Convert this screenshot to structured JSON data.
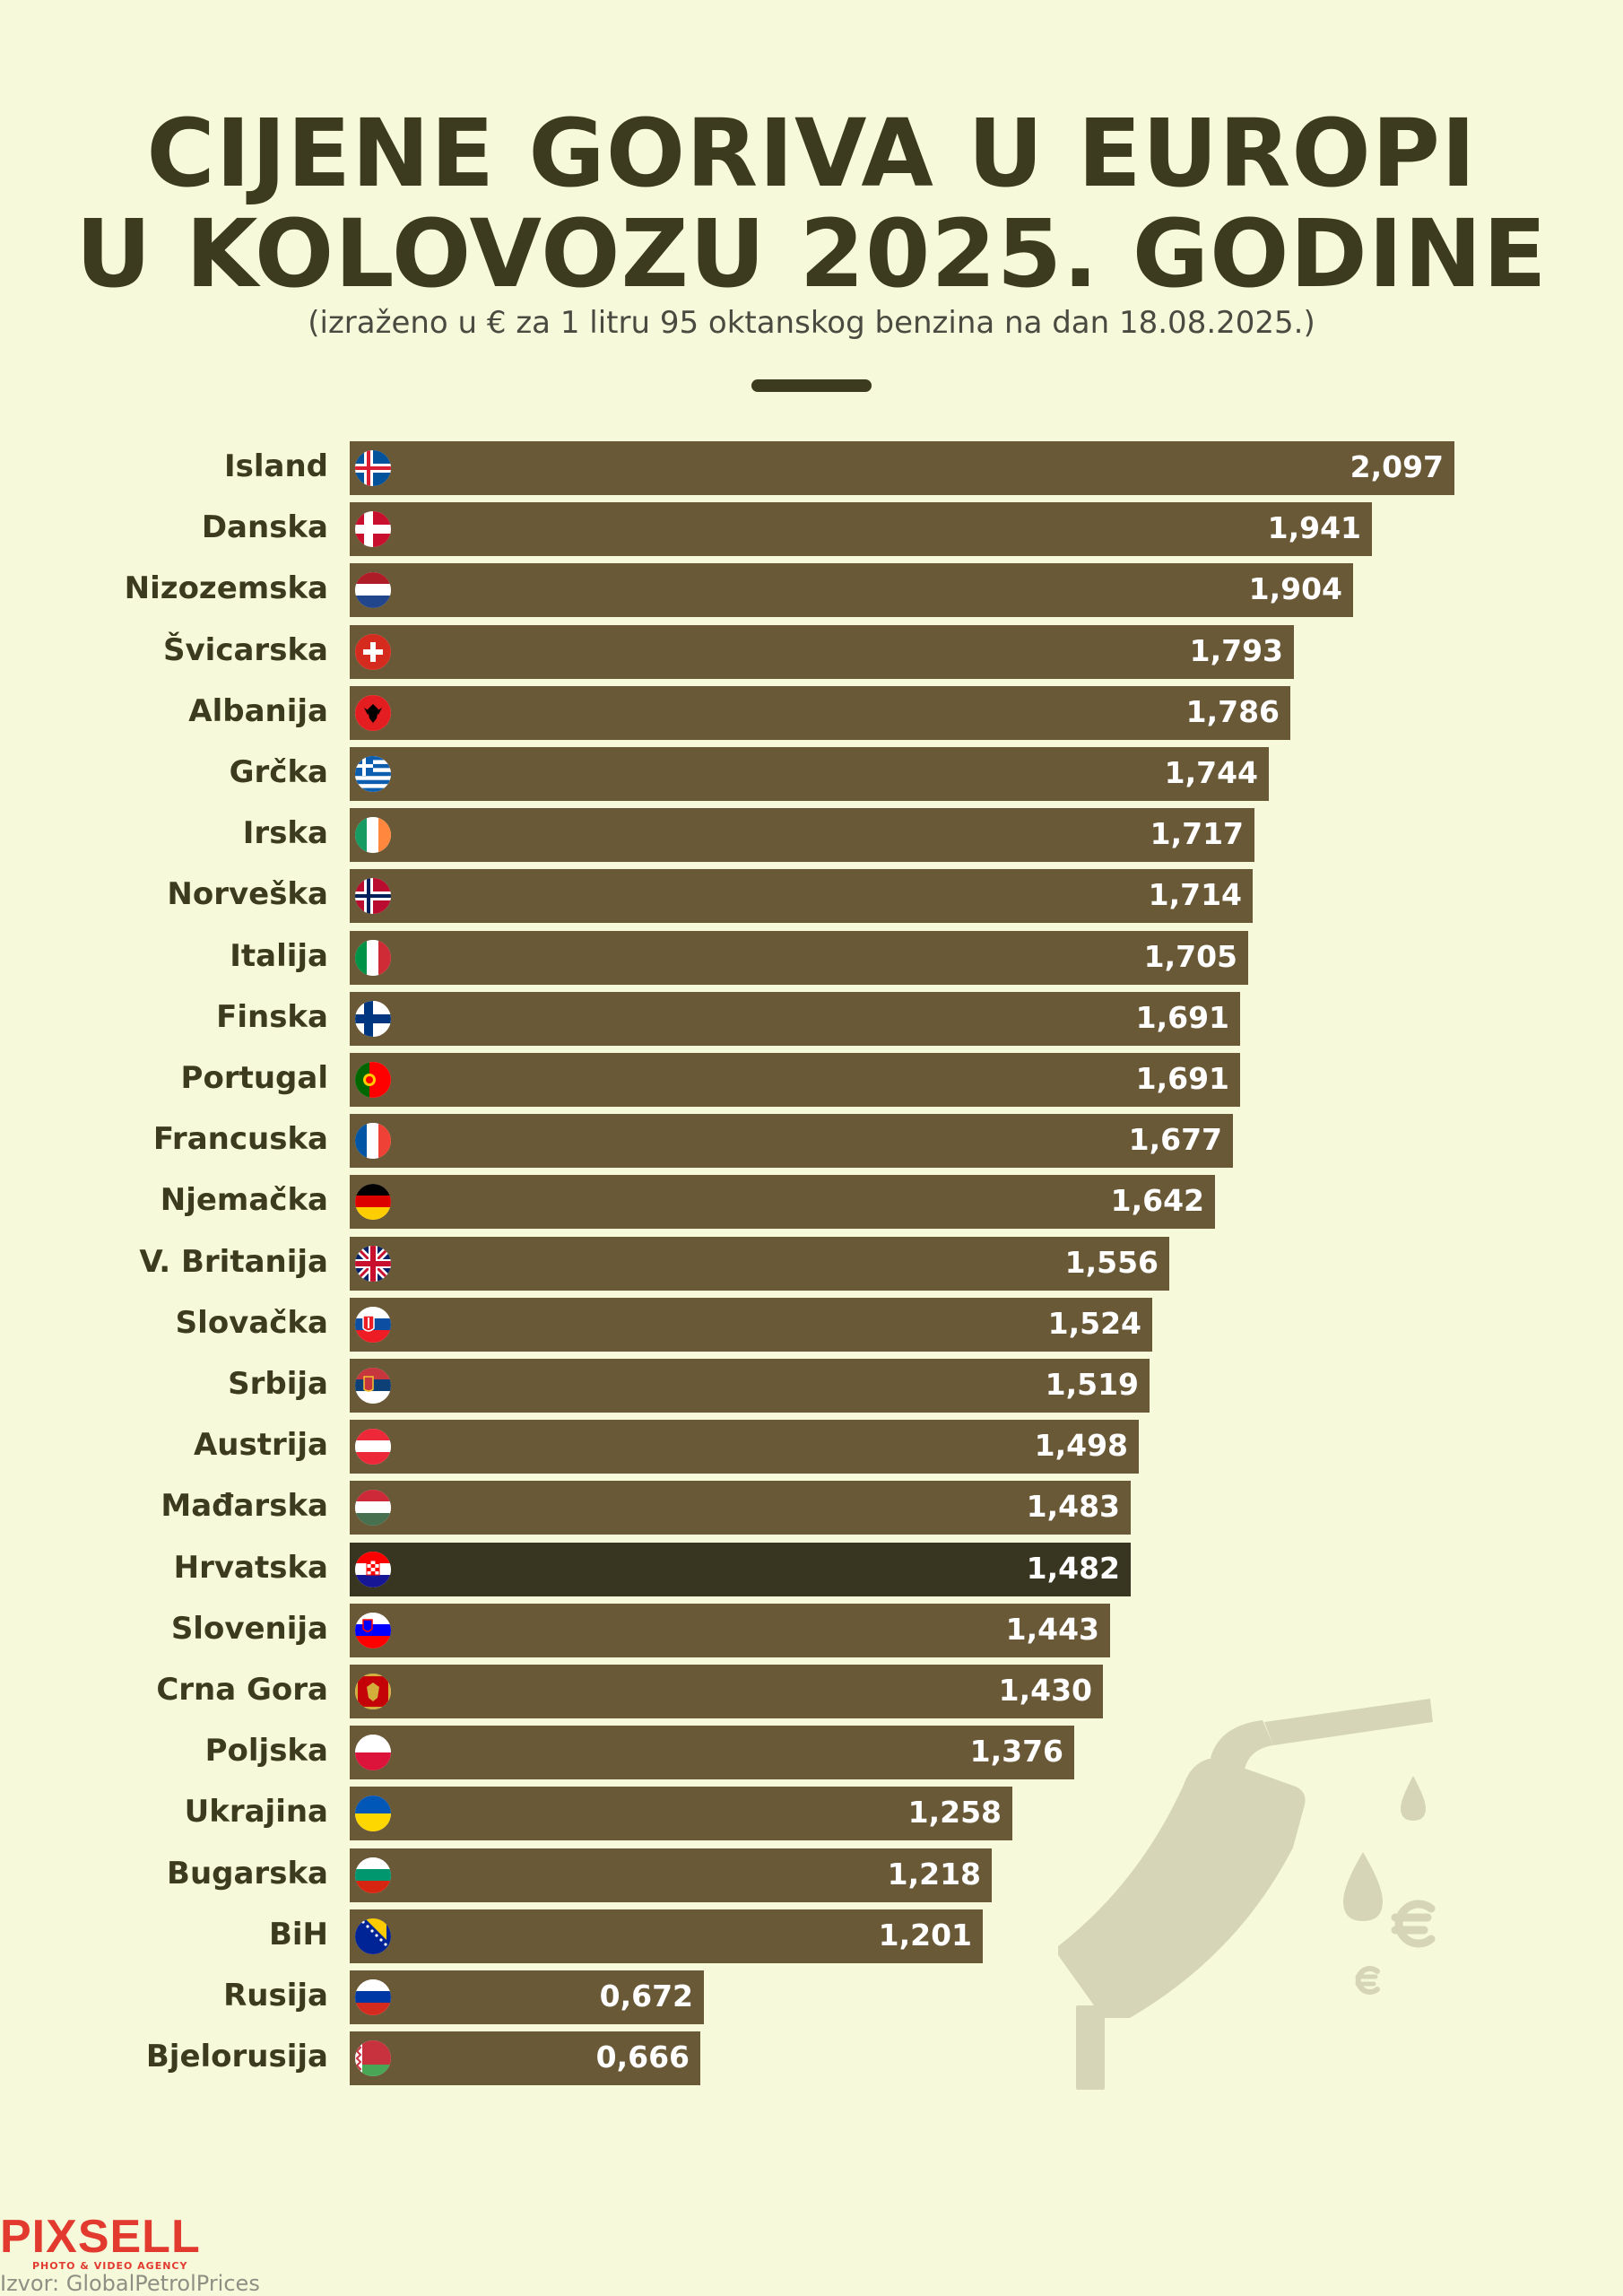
{
  "header": {
    "title_line1": "CIJENE GORIVA U EUROPI",
    "title_line2": "U KOLOVOZU 2025. GODINE",
    "subtitle": "(izraženo u € za 1 litru 95 oktanskog benzina na dan 18.08.2025.)"
  },
  "chart_data": {
    "type": "bar",
    "orientation": "horizontal",
    "categories": [
      "Island",
      "Danska",
      "Nizozemska",
      "Švicarska",
      "Albanija",
      "Grčka",
      "Irska",
      "Norveška",
      "Italija",
      "Finska",
      "Portugal",
      "Francuska",
      "Njemačka",
      "V. Britanija",
      "Slovačka",
      "Srbija",
      "Austrija",
      "Mađarska",
      "Hrvatska",
      "Slovenija",
      "Crna Gora",
      "Poljska",
      "Ukrajina",
      "Bugarska",
      "BiH",
      "Rusija",
      "Bjelorusija"
    ],
    "values": [
      2.097,
      1.941,
      1.904,
      1.793,
      1.786,
      1.744,
      1.717,
      1.714,
      1.705,
      1.691,
      1.691,
      1.677,
      1.642,
      1.556,
      1.524,
      1.519,
      1.498,
      1.483,
      1.482,
      1.443,
      1.43,
      1.376,
      1.258,
      1.218,
      1.201,
      0.672,
      0.666
    ],
    "value_labels": [
      "2,097",
      "1,941",
      "1,904",
      "1,793",
      "1,786",
      "1,744",
      "1,717",
      "1,714",
      "1,705",
      "1,691",
      "1,691",
      "1,677",
      "1,642",
      "1,556",
      "1,524",
      "1,519",
      "1,498",
      "1,483",
      "1,482",
      "1,443",
      "1,430",
      "1,376",
      "1,258",
      "1,218",
      "1,201",
      "0,672",
      "0,666"
    ],
    "highlight": "Hrvatska",
    "flags": [
      "iceland-flag",
      "denmark-flag",
      "netherlands-flag",
      "switzerland-flag",
      "albania-flag",
      "greece-flag",
      "ireland-flag",
      "norway-flag",
      "italy-flag",
      "finland-flag",
      "portugal-flag",
      "france-flag",
      "germany-flag",
      "uk-flag",
      "slovakia-flag",
      "serbia-flag",
      "austria-flag",
      "hungary-flag",
      "croatia-flag",
      "slovenia-flag",
      "montenegro-flag",
      "poland-flag",
      "ukraine-flag",
      "bulgaria-flag",
      "bih-flag",
      "russia-flag",
      "belarus-flag"
    ],
    "xlim": [
      0,
      2.097
    ],
    "grid": false,
    "legend": "none"
  },
  "colors": {
    "background": "#f6fadb",
    "bar": "#695937",
    "bar_highlight": "#383620",
    "title": "#3d3b1f",
    "decoration": "#d6d5b8"
  },
  "footer": {
    "logo": "PIXSELL",
    "logo_tagline": "PHOTO & VIDEO AGENCY",
    "source": "Izvor: GlobalPetrolPrices"
  }
}
